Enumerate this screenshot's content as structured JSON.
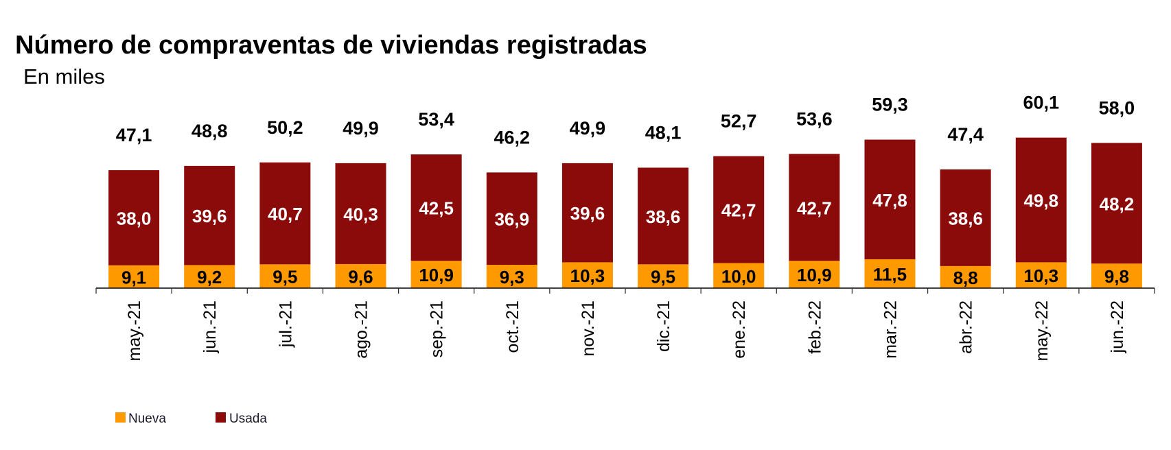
{
  "chart_data": {
    "type": "bar",
    "stacked": true,
    "title": "Número de compraventas de viviendas registradas",
    "subtitle": "En miles",
    "categories": [
      "may.-21",
      "jun.-21",
      "jul.-21",
      "ago.-21",
      "sep.-21",
      "oct.-21",
      "nov.-21",
      "dic.-21",
      "ene.-22",
      "feb.-22",
      "mar.-22",
      "abr.-22",
      "may.-22",
      "jun.-22"
    ],
    "series": [
      {
        "name": "Nueva",
        "color": "#ff9900",
        "values": [
          9.1,
          9.2,
          9.5,
          9.6,
          10.9,
          9.3,
          10.3,
          9.5,
          10.0,
          10.9,
          11.5,
          8.8,
          10.3,
          9.8
        ],
        "labels": [
          "9,1",
          "9,2",
          "9,5",
          "9,6",
          "10,9",
          "9,3",
          "10,3",
          "9,5",
          "10,0",
          "10,9",
          "11,5",
          "8,8",
          "10,3",
          "9,8"
        ]
      },
      {
        "name": "Usada",
        "color": "#8b0a0a",
        "values": [
          38.0,
          39.6,
          40.7,
          40.3,
          42.5,
          36.9,
          39.6,
          38.6,
          42.7,
          42.7,
          47.8,
          38.6,
          49.8,
          48.2
        ],
        "labels": [
          "38,0",
          "39,6",
          "40,7",
          "40,3",
          "42,5",
          "36,9",
          "39,6",
          "38,6",
          "42,7",
          "42,7",
          "47,8",
          "38,6",
          "49,8",
          "48,2"
        ]
      }
    ],
    "totals": [
      47.1,
      48.8,
      50.2,
      49.9,
      53.4,
      46.2,
      49.9,
      48.1,
      52.7,
      53.6,
      59.3,
      47.4,
      60.1,
      58.0
    ],
    "total_labels": [
      "47,1",
      "48,8",
      "50,2",
      "49,9",
      "53,4",
      "46,2",
      "49,9",
      "48,1",
      "52,7",
      "53,6",
      "59,3",
      "47,4",
      "60,1",
      "58,0"
    ],
    "legend": {
      "position": "bottom-left",
      "items": [
        "Nueva",
        "Usada"
      ]
    },
    "grid": false,
    "y_axis_visible": false
  }
}
